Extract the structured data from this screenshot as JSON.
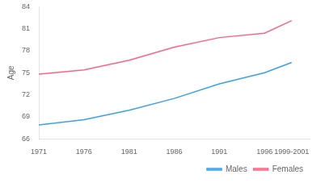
{
  "chart_data": {
    "type": "line",
    "x": [
      1971,
      1976,
      1981,
      1986,
      1991,
      1996,
      1999
    ],
    "series": [
      {
        "name": "Males",
        "values": [
          67.9,
          68.6,
          69.9,
          71.5,
          73.5,
          75.0,
          76.4
        ]
      },
      {
        "name": "Females",
        "values": [
          74.8,
          75.4,
          76.7,
          78.5,
          79.8,
          80.4,
          82.1
        ]
      }
    ],
    "xlim": [
      1971,
      2001
    ],
    "xticks": [
      1971,
      1976,
      1981,
      1986,
      1991,
      1996,
      {
        "value": 1999,
        "label": "1999-2001"
      }
    ],
    "ylabel": "Age",
    "ylim": [
      66,
      84
    ],
    "yticks": [
      66,
      69,
      72,
      75,
      78,
      81,
      84
    ],
    "grid": false,
    "legend": "lower right"
  }
}
